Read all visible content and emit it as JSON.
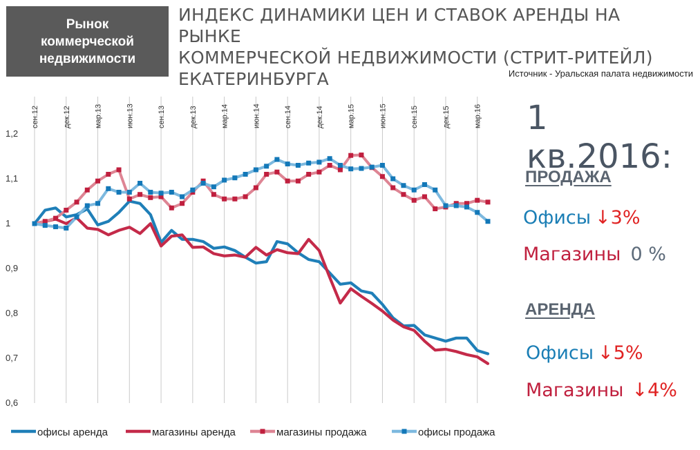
{
  "header": {
    "badge": "Рынок\nкоммерческой\nнедвижимости",
    "title": "ИНДЕКС ДИНАМИКИ ЦЕН И СТАВОК АРЕНДЫ НА РЫНКЕ\nКОММЕРЧЕСКОЙ НЕДВИЖИМОСТИ (СТРИТ-РИТЕЙЛ)\nЕКАТЕРИНБУРГА",
    "source": "Источник - Уральская палата недвижимости"
  },
  "summary": {
    "headline": "1 кв.2016:",
    "sale": {
      "title": "ПРОДАЖА",
      "offices_label": "Офисы",
      "offices_value": "↓3%",
      "shops_label": "Магазины",
      "shops_value": "0 %"
    },
    "rent": {
      "title": "АРЕНДА",
      "offices_label": "Офисы",
      "offices_value": "↓5%",
      "shops_label": "Магазины",
      "shops_value": "↓4%"
    }
  },
  "colors": {
    "offices_rent": "#1f7fb8",
    "shops_rent": "#c42a49",
    "shops_sale": "#de8594",
    "offices_sale": "#7db9df",
    "marker_shops": "#c01f3e",
    "marker_offices": "#1378b8",
    "office_text": "#1a7eb5",
    "shop_text": "#c0203e",
    "arrow": "#e02323",
    "neutral": "#5d6b7a"
  },
  "chart_data": {
    "type": "line",
    "x_tick_labels": [
      "сен.12",
      "дек.12",
      "мар.13",
      "июн.13",
      "сен.13",
      "дек.13",
      "мар.14",
      "июн.14",
      "сен.14",
      "дек.14",
      "мар.15",
      "июн.15",
      "сен.15",
      "дек.15",
      "мар.16"
    ],
    "ylim": [
      0.6,
      1.2
    ],
    "y_ticks": [
      0.6,
      0.7,
      0.8,
      0.9,
      1.0,
      1.1,
      1.2
    ],
    "y_tick_labels": [
      "0,6",
      "0,7",
      "0,8",
      "0,9",
      "1",
      "1,1",
      "1,2"
    ],
    "grid": "vertical",
    "legend_position": "bottom",
    "series": [
      {
        "name": "офисы аренда",
        "marker": false,
        "values": [
          1.0,
          1.03,
          1.035,
          1.015,
          1.02,
          1.033,
          0.997,
          1.005,
          1.025,
          1.05,
          1.045,
          1.02,
          0.958,
          0.985,
          0.965,
          0.965,
          0.96,
          0.945,
          0.948,
          0.94,
          0.925,
          0.912,
          0.915,
          0.96,
          0.955,
          0.935,
          0.92,
          0.915,
          0.89,
          0.865,
          0.868,
          0.85,
          0.845,
          0.82,
          0.79,
          0.772,
          0.773,
          0.752,
          0.745,
          0.738,
          0.745,
          0.745,
          0.717,
          0.71
        ]
      },
      {
        "name": "магазины аренда",
        "marker": false,
        "values": [
          1.0,
          1.005,
          1.01,
          1.0,
          1.013,
          0.99,
          0.987,
          0.975,
          0.985,
          0.992,
          0.978,
          1.0,
          0.95,
          0.972,
          0.975,
          0.947,
          0.948,
          0.933,
          0.928,
          0.93,
          0.925,
          0.947,
          0.93,
          0.942,
          0.935,
          0.933,
          0.965,
          0.94,
          0.88,
          0.823,
          0.855,
          0.838,
          0.822,
          0.805,
          0.785,
          0.77,
          0.762,
          0.738,
          0.718,
          0.72,
          0.715,
          0.708,
          0.703,
          0.688
        ]
      },
      {
        "name": "магазины продажа",
        "marker": true,
        "values": [
          1.0,
          1.005,
          1.012,
          1.03,
          1.048,
          1.075,
          1.095,
          1.11,
          1.12,
          1.055,
          1.065,
          1.058,
          1.06,
          1.035,
          1.045,
          1.07,
          1.095,
          1.065,
          1.055,
          1.055,
          1.06,
          1.08,
          1.11,
          1.115,
          1.095,
          1.095,
          1.11,
          1.115,
          1.13,
          1.12,
          1.152,
          1.153,
          1.125,
          1.105,
          1.08,
          1.065,
          1.052,
          1.06,
          1.033,
          1.037,
          1.045,
          1.045,
          1.052,
          1.048
        ]
      },
      {
        "name": "офисы продажа",
        "marker": true,
        "values": [
          1.0,
          0.996,
          0.993,
          0.99,
          1.015,
          1.04,
          1.045,
          1.078,
          1.07,
          1.07,
          1.09,
          1.07,
          1.068,
          1.07,
          1.06,
          1.075,
          1.09,
          1.082,
          1.097,
          1.102,
          1.11,
          1.12,
          1.128,
          1.143,
          1.133,
          1.13,
          1.135,
          1.137,
          1.145,
          1.13,
          1.122,
          1.123,
          1.126,
          1.13,
          1.1,
          1.085,
          1.075,
          1.087,
          1.075,
          1.04,
          1.04,
          1.037,
          1.025,
          1.005
        ]
      }
    ]
  }
}
